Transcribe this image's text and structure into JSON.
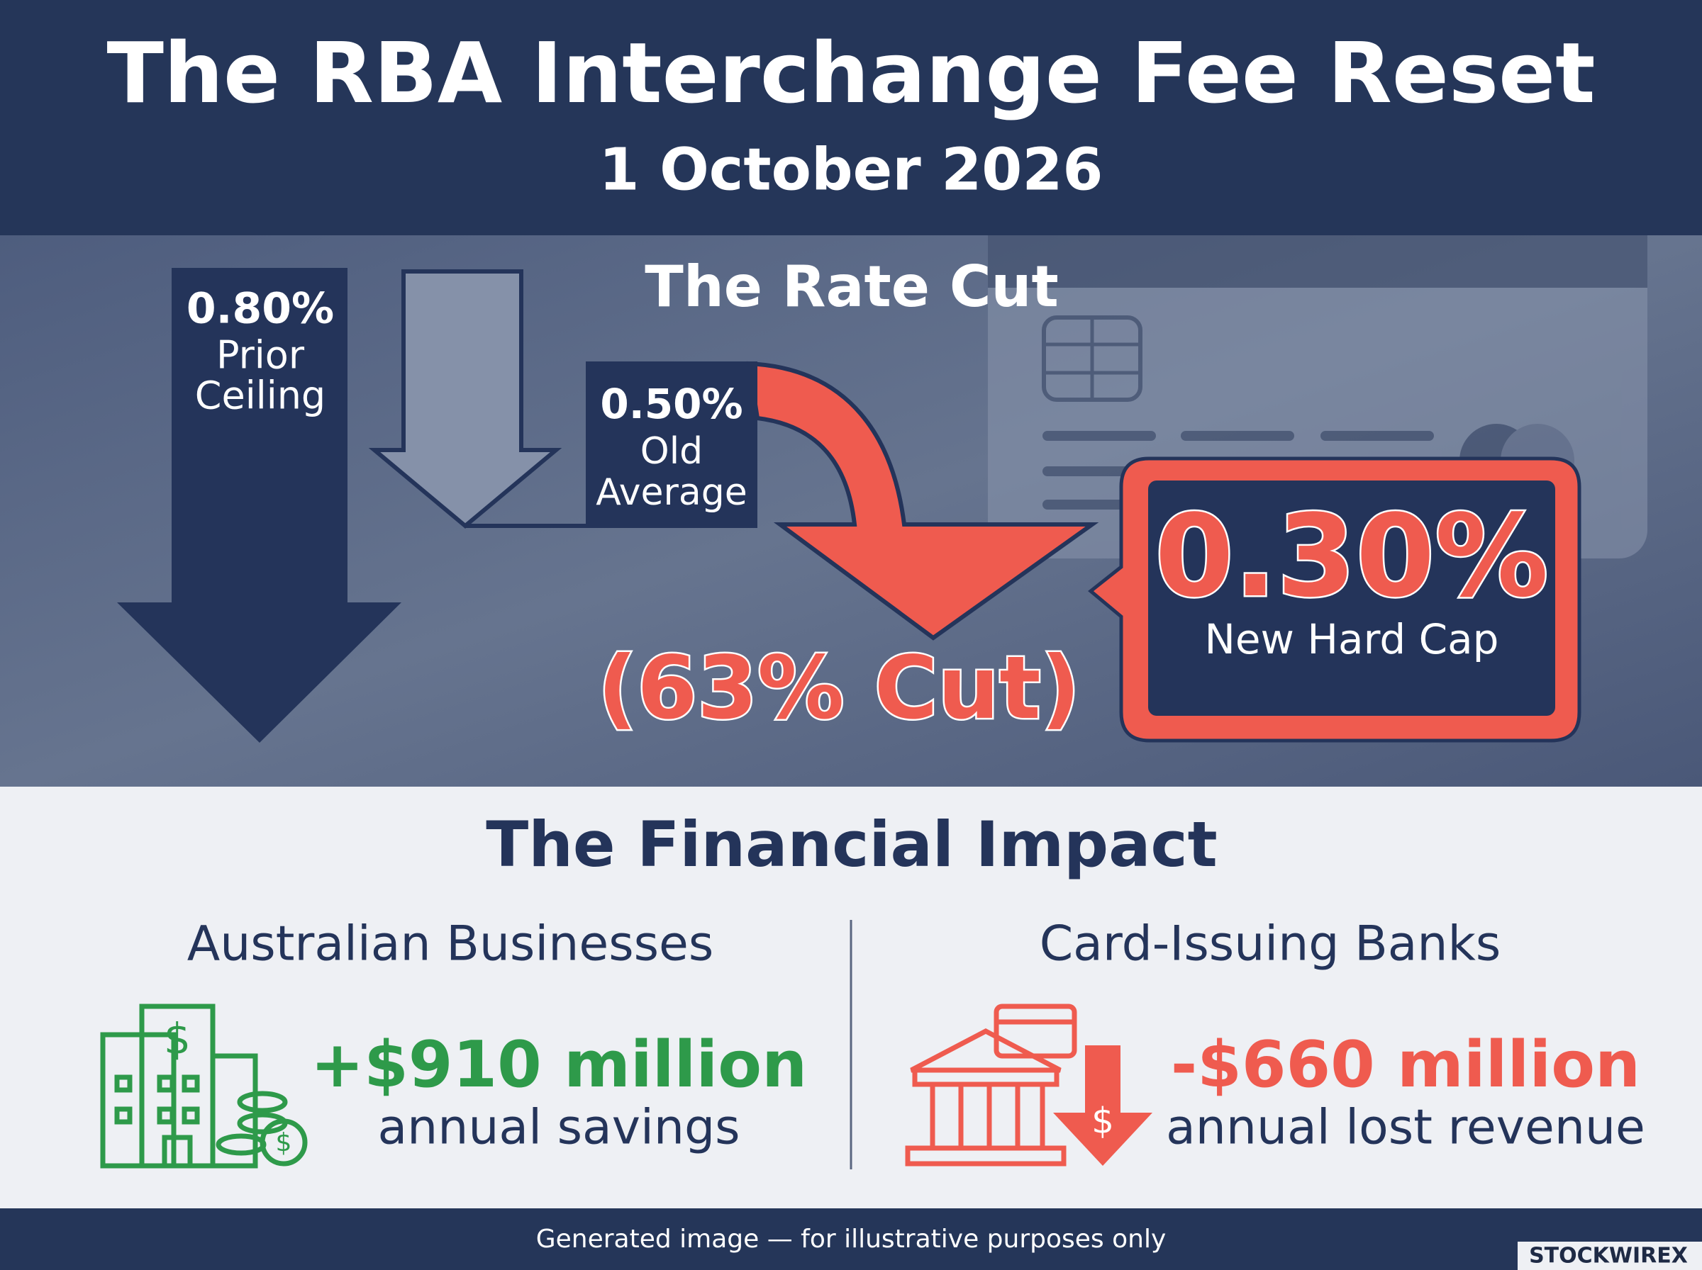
{
  "header": {
    "title": "The RBA Interchange Fee Reset",
    "subtitle": "1 October 2026"
  },
  "rate_cut": {
    "title": "The Rate Cut",
    "prior": {
      "value": "0.80%",
      "label_1": "Prior",
      "label_2": "Ceiling"
    },
    "old": {
      "value": "0.50%",
      "label_1": "Old",
      "label_2": "Average"
    },
    "new": {
      "value": "0.30%",
      "label": "New Hard Cap"
    },
    "cut": "(63% Cut)"
  },
  "impact": {
    "title": "The Financial Impact",
    "businesses": {
      "heading": "Australian Businesses",
      "amount": "+$910 million",
      "caption": "annual savings"
    },
    "banks": {
      "heading": "Card-Issuing Banks",
      "amount": "-$660 million",
      "caption": "annual lost revenue"
    }
  },
  "footer": {
    "note": "Generated image — for illustrative purposes only",
    "brand": "STOCKWIREX"
  }
}
